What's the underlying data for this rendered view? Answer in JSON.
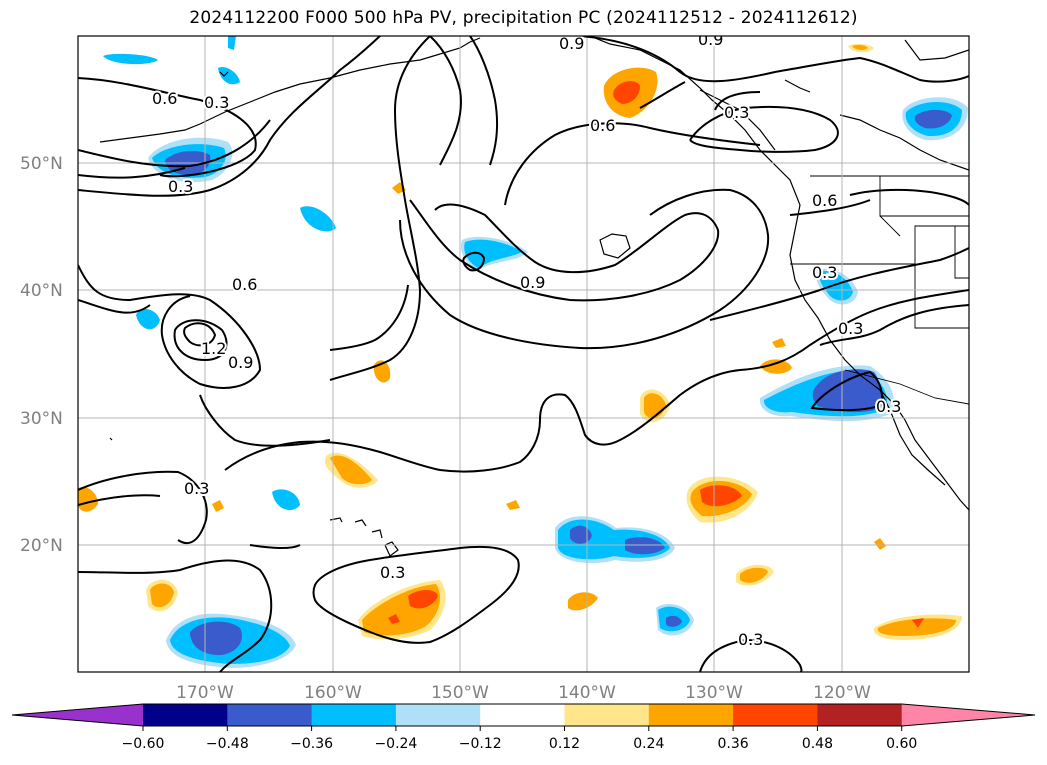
{
  "title": "2024112200 F000 500 hPa PV, precipitation PC (2024112512 - 2024112612)",
  "lat_labels": [
    "50°N",
    "40°N",
    "30°N",
    "20°N"
  ],
  "lon_labels": [
    "170°W",
    "160°W",
    "150°W",
    "140°W",
    "130°W",
    "120°W"
  ],
  "contour_labels": [
    "0.9",
    "0.9",
    "0.6",
    "0.3",
    "0.6",
    "0.3",
    "0.3",
    "0.6",
    "0.9",
    "0.3",
    "0.6",
    "1.2",
    "0.9",
    "0.3",
    "0.3",
    "0.3",
    "0.3",
    "0.3"
  ],
  "colorbar": {
    "ticks": [
      "−0.60",
      "−0.48",
      "−0.36",
      "−0.24",
      "−0.12",
      "0.12",
      "0.24",
      "0.36",
      "0.48",
      "0.60"
    ],
    "colors": [
      "#9932cc",
      "#00008b",
      "#3a5bcc",
      "#00bfff",
      "#b0e0f8",
      "#ffffff",
      "#ffe68a",
      "#ffa500",
      "#ff4500",
      "#b22222",
      "#ff85a8"
    ]
  },
  "chart_data": {
    "type": "heatmap",
    "title": "2024112200 F000 500 hPa PV, precipitation PC (2024112512 - 2024112612)",
    "lon_ticks": [
      -170,
      -160,
      -150,
      -140,
      -130,
      -120
    ],
    "lat_ticks": [
      50,
      40,
      30,
      20
    ],
    "lon_range": [
      -180,
      -110
    ],
    "lat_range": [
      10,
      60
    ],
    "contour_levels": [
      0.3,
      0.6,
      0.9,
      1.2
    ],
    "colorbar_levels": [
      -0.6,
      -0.48,
      -0.36,
      -0.24,
      -0.12,
      0.12,
      0.24,
      0.36,
      0.48,
      0.6
    ],
    "grid": true
  }
}
